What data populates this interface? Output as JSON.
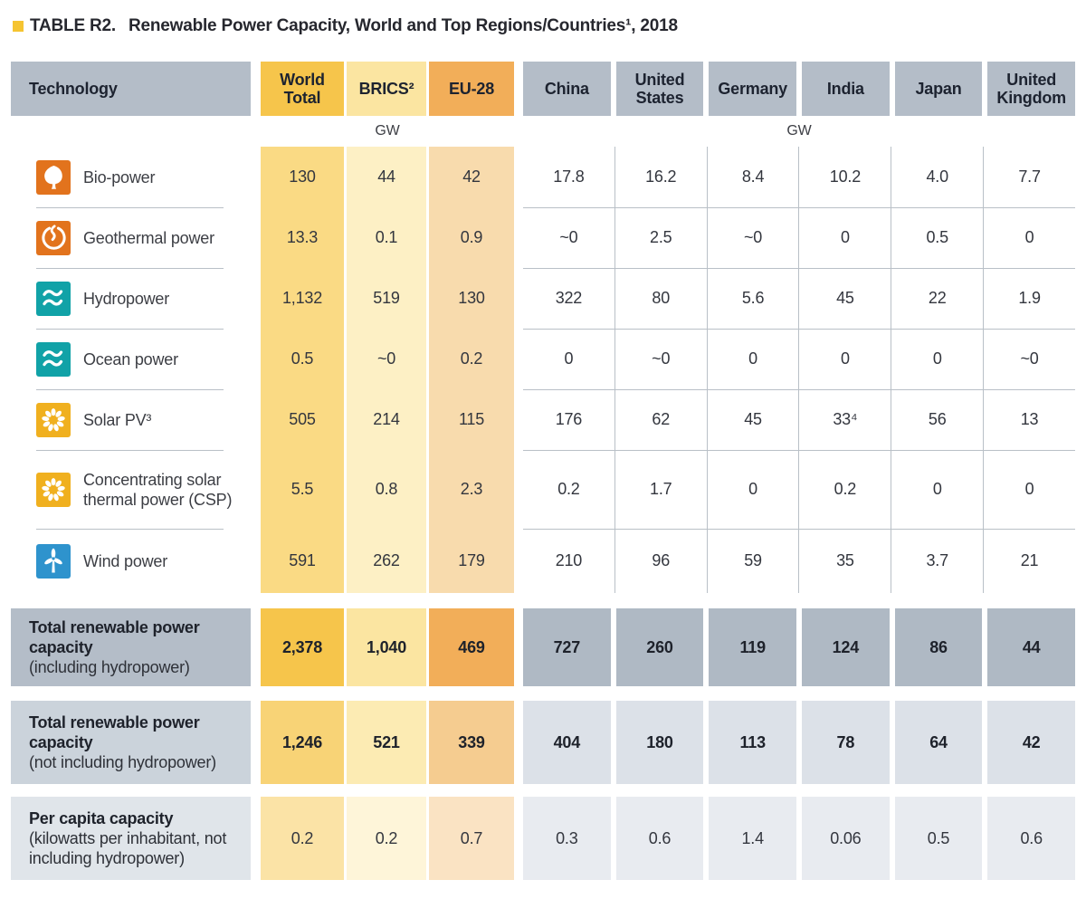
{
  "title": {
    "tag": "TABLE R2.",
    "text": "Renewable Power Capacity, World and Top Regions/Countries¹, 2018"
  },
  "units": {
    "left": "GW",
    "right": "GW"
  },
  "header": {
    "technology": "Technology",
    "region_columns": [
      "World Total",
      "BRICS²",
      "EU-28"
    ],
    "country_columns": [
      "China",
      "United States",
      "Germany",
      "India",
      "Japan",
      "United Kingdom"
    ]
  },
  "rows": [
    {
      "icon": "bio-power-icon",
      "icon_color": "#E2731D",
      "label": "Bio-power",
      "region_values": [
        "130",
        "44",
        "42"
      ],
      "country_values": [
        "17.8",
        "16.2",
        "8.4",
        "10.2",
        "4.0",
        "7.7"
      ]
    },
    {
      "icon": "geothermal-icon",
      "icon_color": "#E2731D",
      "label": "Geothermal power",
      "region_values": [
        "13.3",
        "0.1",
        "0.9"
      ],
      "country_values": [
        "~0",
        "2.5",
        "~0",
        "0",
        "0.5",
        "0"
      ]
    },
    {
      "icon": "hydropower-icon",
      "icon_color": "#11A2A7",
      "label": "Hydropower",
      "region_values": [
        "1,132",
        "519",
        "130"
      ],
      "country_values": [
        "322",
        "80",
        "5.6",
        "45",
        "22",
        "1.9"
      ]
    },
    {
      "icon": "ocean-power-icon",
      "icon_color": "#11A2A7",
      "label": "Ocean power",
      "region_values": [
        "0.5",
        "~0",
        "0.2"
      ],
      "country_values": [
        "0",
        "~0",
        "0",
        "0",
        "0",
        "~0"
      ]
    },
    {
      "icon": "solar-pv-icon",
      "icon_color": "#F0B01F",
      "label": "Solar PV³",
      "region_values": [
        "505",
        "214",
        "115"
      ],
      "country_values": [
        "176",
        "62",
        "45",
        "33⁴",
        "56",
        "13"
      ]
    },
    {
      "icon": "csp-icon",
      "icon_color": "#F0B01F",
      "label": "Concentrating solar thermal power (CSP)",
      "region_values": [
        "5.5",
        "0.8",
        "2.3"
      ],
      "country_values": [
        "0.2",
        "1.7",
        "0",
        "0.2",
        "0",
        "0"
      ]
    },
    {
      "icon": "wind-power-icon",
      "icon_color": "#2E93CD",
      "label": "Wind power",
      "region_values": [
        "591",
        "262",
        "179"
      ],
      "country_values": [
        "210",
        "96",
        "59",
        "35",
        "3.7",
        "21"
      ]
    }
  ],
  "summary_rows": [
    {
      "id": "total-including-hydropower",
      "label_bold": "Total renewable power capacity",
      "label_note": "(including hydropower)",
      "region_values": [
        "2,378",
        "1,040",
        "469"
      ],
      "country_values": [
        "727",
        "260",
        "119",
        "124",
        "86",
        "44"
      ]
    },
    {
      "id": "total-not-including-hydropower",
      "label_bold": "Total renewable power capacity",
      "label_note": "(not including hydropower)",
      "region_values": [
        "1,246",
        "521",
        "339"
      ],
      "country_values": [
        "404",
        "180",
        "113",
        "78",
        "64",
        "42"
      ]
    },
    {
      "id": "per-capita-capacity",
      "label_bold": "Per capita capacity",
      "label_note": "(kilowatts per inhabitant, not including hydropower)",
      "region_values": [
        "0.2",
        "0.2",
        "0.7"
      ],
      "country_values": [
        "0.3",
        "0.6",
        "1.4",
        "0.06",
        "0.5",
        "0.6"
      ]
    }
  ],
  "colors": {
    "gold_bullet": "#F5C431",
    "header_gray": "#B4BDC8",
    "divider_line": "#B9C0C7",
    "world_header": "#F6C54B",
    "brics_header": "#FBE5A1",
    "eu_header": "#F2AE59",
    "world_band": "#FADA84",
    "brics_band": "#FDF0C5",
    "eu_band": "#F8DBAD",
    "total2_world": "#F8D376",
    "total2_brics": "#FCEBB3",
    "total2_eu": "#F5CC90",
    "percap_world": "#FBE3A6",
    "percap_brics": "#FEF5D9",
    "percap_eu": "#FAE3C3",
    "total1_country_bg": "#AFB9C4",
    "total2_country_bg": "#DCE1E8",
    "total2_label_bg": "#CBD3DB",
    "percap_country_bg": "#E8EBF0",
    "percap_label_bg": "#E0E5EA"
  }
}
